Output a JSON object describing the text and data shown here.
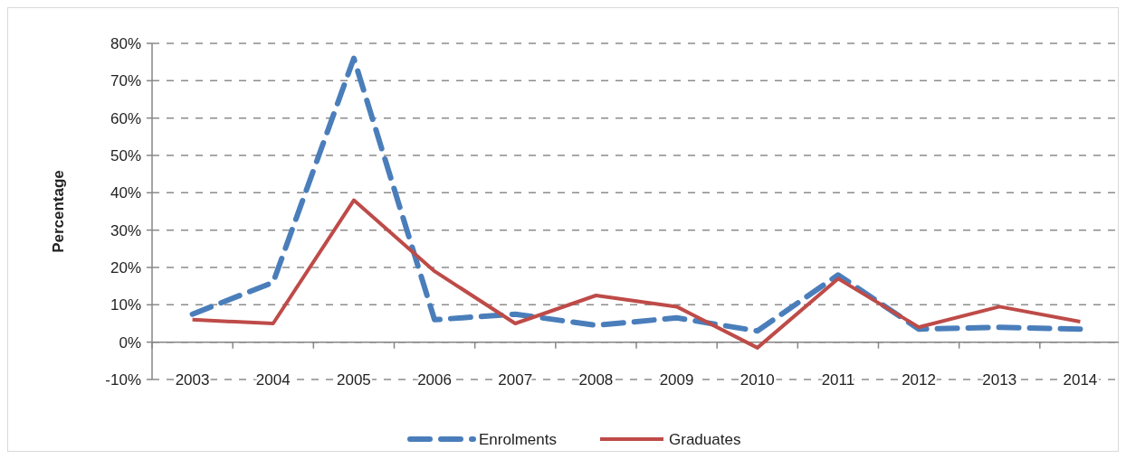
{
  "chart_data": {
    "type": "line",
    "ylabel": "Percentage",
    "categories": [
      "2003",
      "2004",
      "2005",
      "2006",
      "2007",
      "2008",
      "2009",
      "2010",
      "2011",
      "2012",
      "2013",
      "2014"
    ],
    "series": [
      {
        "name": "Enrolments",
        "color": "#4a7ebb",
        "line_style": "dashed",
        "values": [
          7.5,
          16,
          76,
          6,
          7.5,
          4.5,
          6.5,
          3,
          18,
          3.5,
          4,
          3.5
        ]
      },
      {
        "name": "Graduates",
        "color": "#be4b48",
        "line_style": "solid",
        "values": [
          6,
          5,
          38,
          19,
          5,
          12.5,
          9.5,
          -1.5,
          17,
          4,
          9.5,
          5.5
        ]
      }
    ],
    "ylim": [
      -10,
      80
    ],
    "yticks": [
      {
        "value": -10,
        "label": "-10%"
      },
      {
        "value": 0,
        "label": "0%"
      },
      {
        "value": 10,
        "label": "10%"
      },
      {
        "value": 20,
        "label": "20%"
      },
      {
        "value": 30,
        "label": "30%"
      },
      {
        "value": 40,
        "label": "40%"
      },
      {
        "value": 50,
        "label": "50%"
      },
      {
        "value": 60,
        "label": "60%"
      },
      {
        "value": 70,
        "label": "70%"
      },
      {
        "value": 80,
        "label": "80%"
      }
    ],
    "grid": "y",
    "legend": "bottom",
    "marker": "none"
  }
}
